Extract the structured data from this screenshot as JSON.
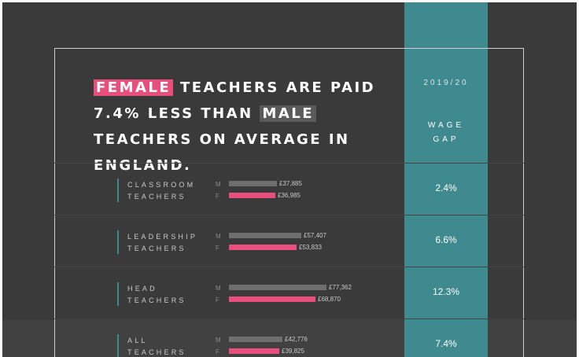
{
  "headline": {
    "female": "FEMALE",
    "part1": " TEACHERS ARE PAID 7.4% LESS THAN ",
    "male": "MALE",
    "part2": " TEACHERS ON AVERAGE IN ENGLAND."
  },
  "gap_column": {
    "year": "2019/20",
    "title_line1": "WAGE",
    "title_line2": "GAP"
  },
  "colors": {
    "background": "#3a3a3a",
    "female": "#e84f7d",
    "male": "#6e6e6e",
    "accent": "#3f8a8f"
  },
  "chart_data": {
    "type": "bar",
    "orientation": "horizontal",
    "title": "FEMALE TEACHERS ARE PAID 7.4% LESS THAN MALE TEACHERS ON AVERAGE IN ENGLAND.",
    "series_labels": [
      "M",
      "F"
    ],
    "categories": [
      {
        "line1": "CLASSROOM",
        "line2": "TEACHERS",
        "m": 37885,
        "f": 36985,
        "m_label": "£37,885",
        "f_label": "£36,985",
        "gap": "2.4%"
      },
      {
        "line1": "LEADERSHIP",
        "line2": "TEACHERS",
        "m": 57407,
        "f": 53833,
        "m_label": "£57,407",
        "f_label": "£53,833",
        "gap": "6.6%"
      },
      {
        "line1": "HEAD",
        "line2": "TEACHERS",
        "m": 77362,
        "f": 68870,
        "m_label": "£77,362",
        "f_label": "£68,870",
        "gap": "12.3%"
      },
      {
        "line1": "ALL",
        "line2": "TEACHERS",
        "m": 42776,
        "f": 39825,
        "m_label": "£42,776",
        "f_label": "£39,825",
        "gap": "7.4%"
      }
    ]
  }
}
